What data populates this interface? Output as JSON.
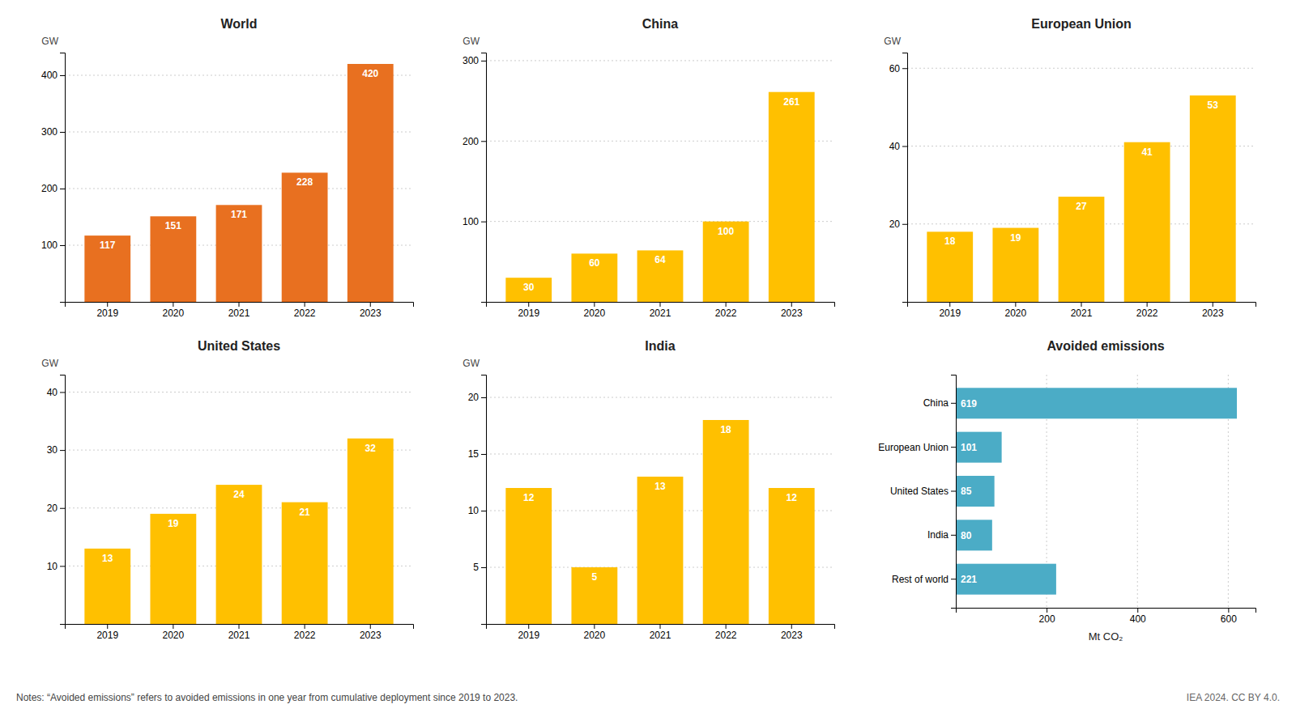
{
  "chart_data": [
    {
      "type": "bar",
      "title": "World",
      "categories": [
        "2019",
        "2020",
        "2021",
        "2022",
        "2023"
      ],
      "values": [
        117,
        151,
        171,
        228,
        420
      ],
      "color": "#E87020",
      "ylim": [
        0,
        440
      ],
      "yticks": [
        100,
        200,
        300,
        400
      ],
      "ylabel": "GW",
      "grid": true,
      "data_labels": true
    },
    {
      "type": "bar",
      "title": "China",
      "categories": [
        "2019",
        "2020",
        "2021",
        "2022",
        "2023"
      ],
      "values": [
        30,
        60,
        64,
        100,
        261
      ],
      "color": "#FFC000",
      "ylim": [
        0,
        310
      ],
      "yticks": [
        100,
        200,
        300
      ],
      "ylabel": "GW",
      "grid": true,
      "data_labels": true
    },
    {
      "type": "bar",
      "title": "European Union",
      "categories": [
        "2019",
        "2020",
        "2021",
        "2022",
        "2023"
      ],
      "values": [
        18,
        19,
        27,
        41,
        53
      ],
      "color": "#FFC000",
      "ylim": [
        0,
        64
      ],
      "yticks": [
        20,
        40,
        60
      ],
      "ylabel": "GW",
      "grid": true,
      "data_labels": true
    },
    {
      "type": "bar",
      "title": "United States",
      "categories": [
        "2019",
        "2020",
        "2021",
        "2022",
        "2023"
      ],
      "values": [
        13,
        19,
        24,
        21,
        32
      ],
      "color": "#FFC000",
      "ylim": [
        0,
        43
      ],
      "yticks": [
        10,
        20,
        30,
        40
      ],
      "ylabel": "GW",
      "grid": true,
      "data_labels": true
    },
    {
      "type": "bar",
      "title": "India",
      "categories": [
        "2019",
        "2020",
        "2021",
        "2022",
        "2023"
      ],
      "values": [
        12,
        5,
        13,
        18,
        12
      ],
      "color": "#FFC000",
      "ylim": [
        0,
        22
      ],
      "yticks": [
        5,
        10,
        15,
        20
      ],
      "ylabel": "GW",
      "grid": true,
      "data_labels": true
    },
    {
      "type": "bar",
      "orientation": "horizontal",
      "title": "Avoided emissions",
      "categories": [
        "China",
        "European Union",
        "United States",
        "India",
        "Rest of world"
      ],
      "values": [
        619,
        101,
        85,
        80,
        221
      ],
      "color": "#4BACC6",
      "xlim": [
        0,
        660
      ],
      "xticks": [
        200,
        400,
        600
      ],
      "xlabel": "Mt CO₂",
      "grid": true,
      "data_labels": true
    }
  ],
  "annotations": [
    "Notes: “Avoided emissions” refers to avoided emissions in one year from cumulative deployment since 2019 to 2023.",
    "IEA 2024. CC BY 4.0."
  ]
}
